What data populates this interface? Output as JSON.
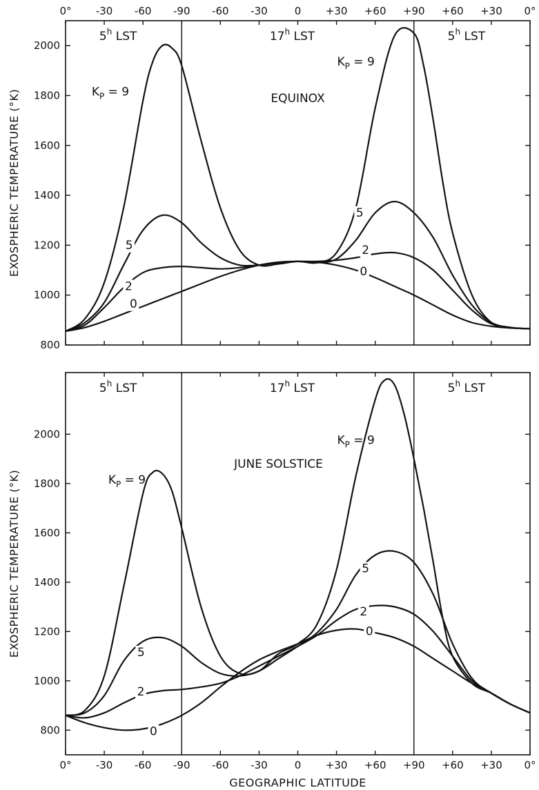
{
  "chart_data": [
    {
      "type": "line",
      "xlabel": "",
      "ylabel": "EXOSPHERIC TEMPERATURE (°K)",
      "ylim": [
        800,
        2100
      ],
      "yticks": [
        800,
        1000,
        1200,
        1400,
        1600,
        1800,
        2000
      ],
      "x_tick_labels": [
        "0°",
        "-30",
        "-60",
        "-90",
        "-60",
        "-30",
        "0",
        "+30",
        "+60",
        "+90",
        "+60",
        "+30",
        "0°"
      ],
      "x_tick_labels_position": "top",
      "xlim": [
        0,
        12
      ],
      "x_note": "x positions are tick-label indices 0..12 along the latitude axis",
      "regions": [
        {
          "label": "5",
          "sup": "h",
          "suffix": " LST",
          "x_from": 0,
          "x_to": 3
        },
        {
          "label": "17",
          "sup": "h",
          "suffix": " LST",
          "x_from": 3,
          "x_to": 9
        },
        {
          "label": "5",
          "sup": "h",
          "suffix": " LST",
          "x_from": 9,
          "x_to": 12
        }
      ],
      "dividers_x": [
        3,
        9
      ],
      "annotation": "EQUINOX",
      "series": [
        {
          "name": "Kp = 9",
          "label_main": "K",
          "label_sub": "P",
          "label_rest": " = 9",
          "x": [
            0,
            0.5,
            1,
            1.5,
            2,
            2.25,
            2.5,
            2.75,
            3,
            3.5,
            4,
            4.5,
            5,
            5.5,
            6,
            6.5,
            7,
            7.5,
            8,
            8.5,
            9,
            9.25,
            9.5,
            9.75,
            10,
            10.5,
            11,
            11.5,
            12
          ],
          "y": [
            855,
            905,
            1050,
            1350,
            1780,
            1935,
            2000,
            1990,
            1920,
            1620,
            1350,
            1180,
            1120,
            1125,
            1135,
            1130,
            1170,
            1350,
            1750,
            2040,
            2050,
            1920,
            1700,
            1450,
            1250,
            1000,
            890,
            870,
            865
          ]
        },
        {
          "name": "5",
          "x": [
            0,
            0.5,
            1,
            1.5,
            2,
            2.5,
            3,
            3.5,
            4,
            4.5,
            5,
            5.5,
            6,
            6.5,
            7,
            7.5,
            8,
            8.5,
            9,
            9.5,
            10,
            10.5,
            11,
            11.5,
            12
          ],
          "y": [
            855,
            890,
            970,
            1120,
            1260,
            1320,
            1290,
            1210,
            1150,
            1120,
            1120,
            1130,
            1135,
            1130,
            1145,
            1220,
            1330,
            1375,
            1330,
            1230,
            1080,
            960,
            890,
            870,
            865
          ]
        },
        {
          "name": "2",
          "x": [
            0,
            0.5,
            1,
            1.5,
            2,
            2.5,
            3,
            3.5,
            4,
            4.5,
            5,
            5.5,
            6,
            6.5,
            7,
            7.5,
            8,
            8.5,
            9,
            9.5,
            10,
            10.5,
            11,
            11.5,
            12
          ],
          "y": [
            855,
            880,
            950,
            1030,
            1090,
            1110,
            1115,
            1110,
            1105,
            1110,
            1120,
            1130,
            1135,
            1135,
            1140,
            1150,
            1165,
            1170,
            1150,
            1100,
            1020,
            940,
            885,
            870,
            865
          ]
        },
        {
          "name": "0",
          "x": [
            0,
            0.5,
            1,
            1.5,
            2,
            2.5,
            3,
            3.5,
            4,
            4.5,
            5,
            5.5,
            6,
            6.5,
            7,
            7.5,
            8,
            8.5,
            9,
            9.5,
            10,
            10.5,
            11,
            11.5,
            12
          ],
          "y": [
            855,
            870,
            895,
            925,
            955,
            985,
            1015,
            1045,
            1075,
            1100,
            1120,
            1132,
            1135,
            1132,
            1120,
            1100,
            1070,
            1035,
            1000,
            960,
            920,
            890,
            875,
            868,
            865
          ]
        }
      ]
    },
    {
      "type": "line",
      "xlabel": "GEOGRAPHIC LATITUDE",
      "ylabel": "EXOSPHERIC TEMPERATURE (°K)",
      "ylim": [
        700,
        2250
      ],
      "yticks": [
        800,
        1000,
        1200,
        1400,
        1600,
        1800,
        2000
      ],
      "x_tick_labels": [
        "0°",
        "-30",
        "-60",
        "-90",
        "-60",
        "-30",
        "0",
        "+30",
        "+60",
        "+90",
        "+60",
        "+30",
        "0°"
      ],
      "x_tick_labels_position": "bottom",
      "xlim": [
        0,
        12
      ],
      "x_note": "x positions are tick-label indices 0..12 along the latitude axis",
      "regions": [
        {
          "label": "5",
          "sup": "h",
          "suffix": " LST",
          "x_from": 0,
          "x_to": 3
        },
        {
          "label": "17",
          "sup": "h",
          "suffix": " LST",
          "x_from": 3,
          "x_to": 9
        },
        {
          "label": "5",
          "sup": "h",
          "suffix": " LST",
          "x_from": 9,
          "x_to": 12
        }
      ],
      "dividers_x": [
        3,
        9
      ],
      "annotation": "JUNE SOLSTICE",
      "series": [
        {
          "name": "Kp = 9",
          "label_main": "K",
          "label_sub": "P",
          "label_rest": " = 9",
          "x": [
            0,
            0.5,
            1,
            1.5,
            2,
            2.25,
            2.5,
            2.75,
            3,
            3.5,
            4,
            4.5,
            5,
            5.5,
            6,
            6.5,
            7,
            7.5,
            8,
            8.25,
            8.5,
            8.75,
            9,
            9.25,
            9.5,
            9.75,
            10,
            10.5,
            11,
            11.5,
            12
          ],
          "y": [
            860,
            880,
            1020,
            1380,
            1760,
            1845,
            1840,
            1770,
            1620,
            1300,
            1100,
            1030,
            1040,
            1110,
            1150,
            1230,
            1450,
            1830,
            2140,
            2220,
            2200,
            2080,
            1900,
            1700,
            1480,
            1250,
            1100,
            990,
            950,
            905,
            870
          ]
        },
        {
          "name": "5",
          "x": [
            0,
            0.5,
            1,
            1.5,
            2,
            2.5,
            3,
            3.5,
            4,
            4.5,
            5,
            5.5,
            6,
            6.5,
            7,
            7.5,
            8,
            8.5,
            9,
            9.5,
            10,
            10.5,
            11,
            11.5,
            12
          ],
          "y": [
            860,
            870,
            940,
            1080,
            1160,
            1175,
            1140,
            1075,
            1030,
            1020,
            1040,
            1090,
            1140,
            1195,
            1290,
            1430,
            1510,
            1525,
            1480,
            1350,
            1150,
            1010,
            950,
            905,
            870
          ]
        },
        {
          "name": "2",
          "x": [
            0,
            0.5,
            1,
            1.5,
            2,
            2.5,
            3,
            3.5,
            4,
            4.5,
            5,
            5.5,
            6,
            6.5,
            7,
            7.5,
            8,
            8.5,
            9,
            9.5,
            10,
            10.5,
            11,
            11.5,
            12
          ],
          "y": [
            860,
            850,
            870,
            910,
            945,
            960,
            965,
            975,
            990,
            1020,
            1060,
            1100,
            1140,
            1185,
            1245,
            1290,
            1305,
            1300,
            1270,
            1200,
            1100,
            1000,
            950,
            905,
            870
          ]
        },
        {
          "name": "0",
          "x": [
            0,
            0.5,
            1,
            1.5,
            2,
            2.5,
            3,
            3.5,
            4,
            4.5,
            5,
            5.5,
            6,
            6.5,
            7,
            7.5,
            8,
            8.5,
            9,
            9.5,
            10,
            10.5,
            11,
            11.5,
            12
          ],
          "y": [
            860,
            830,
            810,
            800,
            805,
            825,
            860,
            910,
            975,
            1035,
            1085,
            1120,
            1150,
            1185,
            1205,
            1210,
            1195,
            1175,
            1140,
            1090,
            1040,
            990,
            950,
            905,
            870
          ]
        }
      ]
    }
  ]
}
